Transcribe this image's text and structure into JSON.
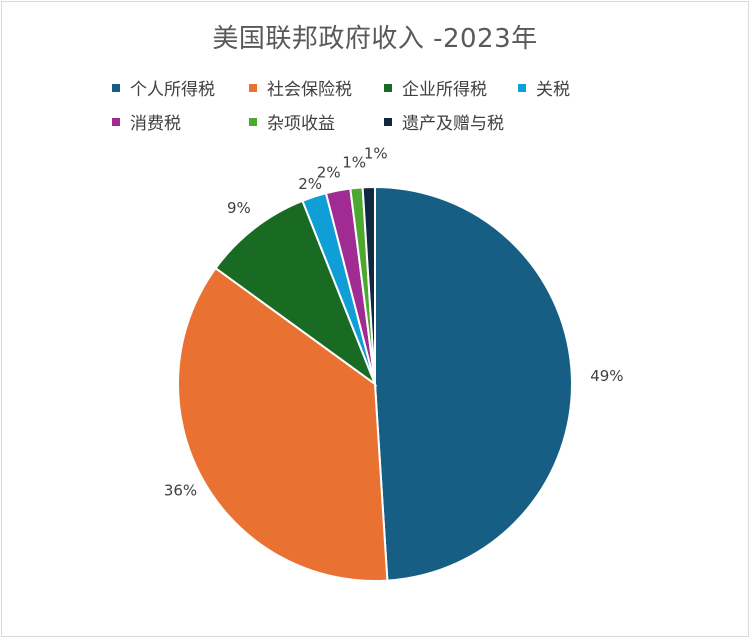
{
  "title": "美国联邦政府收入 -2023年",
  "chart_data": {
    "type": "pie",
    "title": "美国联邦政府收入 -2023年",
    "legend_position": "top",
    "slices": [
      {
        "label": "个人所得税",
        "value": 49,
        "value_label": "49%",
        "color": "#165e83"
      },
      {
        "label": "社会保险税",
        "value": 36,
        "value_label": "36%",
        "color": "#e97132"
      },
      {
        "label": "企业所得税",
        "value": 9,
        "value_label": "9%",
        "color": "#196b24"
      },
      {
        "label": "关税",
        "value": 2,
        "value_label": "2%",
        "color": "#0f9ed5"
      },
      {
        "label": "消费税",
        "value": 2,
        "value_label": "2%",
        "color": "#a02b93"
      },
      {
        "label": "杂项收益",
        "value": 1,
        "value_label": "1%",
        "color": "#4ea72e"
      },
      {
        "label": "遗产及赠与税",
        "value": 1,
        "value_label": "1%",
        "color": "#0e2841"
      }
    ]
  }
}
